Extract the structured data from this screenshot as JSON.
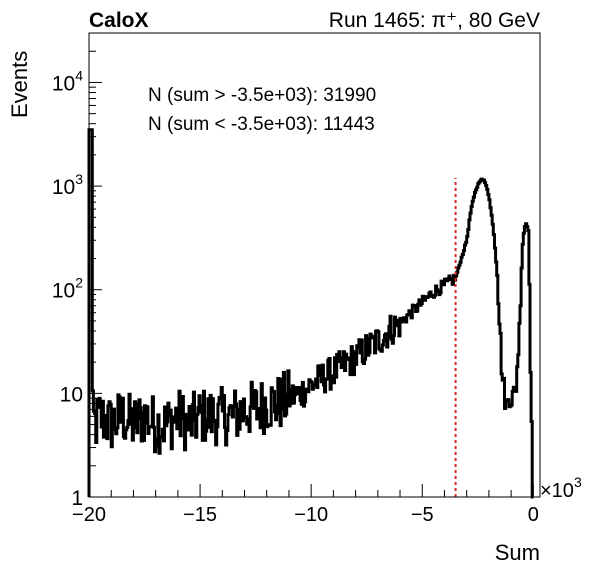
{
  "header": {
    "brand": "CaloX",
    "run_info": "Run 1465: π⁺, 80 GeV"
  },
  "chart_data": {
    "type": "line",
    "title": "",
    "xlabel": "Sum",
    "ylabel": "Events",
    "x_multiplier": "×10",
    "x_multiplier_exp": "3",
    "xlim": [
      -20,
      0.3
    ],
    "ylim": [
      1,
      30000
    ],
    "yscale": "log",
    "grid": false,
    "x_ticks": [
      -20,
      -15,
      -10,
      -5,
      0
    ],
    "x_tick_labels": [
      "−20",
      "−15",
      "−10",
      "−5",
      "0"
    ],
    "y_ticks": [
      {
        "value": 1,
        "base": "1",
        "exp": ""
      },
      {
        "value": 10,
        "base": "10",
        "exp": ""
      },
      {
        "value": 100,
        "base": "10",
        "exp": "2"
      },
      {
        "value": 1000,
        "base": "10",
        "exp": "3"
      },
      {
        "value": 10000,
        "base": "10",
        "exp": "4"
      }
    ],
    "annotations": [
      "N (sum > -3.5e+03): 31990",
      "N (sum < -3.5e+03): 11443"
    ],
    "cut_line": {
      "x": -3.5,
      "y_top": 1200,
      "color": "#d62728"
    },
    "series": [
      {
        "x": [
          -20.0,
          -19.9,
          -19.7,
          -19.5,
          -19.0,
          -18.5,
          -18.0,
          -17.5,
          -17.0,
          -16.5,
          -16.0,
          -15.5,
          -15.0,
          -14.5,
          -14.0,
          -13.5,
          -13.0,
          -12.5,
          -12.0,
          -11.5,
          -11.0,
          -10.5,
          -10.0,
          -9.5,
          -9.0,
          -8.5,
          -8.0,
          -7.5,
          -7.0,
          -6.5,
          -6.0,
          -5.5,
          -5.0,
          -4.5,
          -4.0,
          -3.5,
          -3.3,
          -3.0,
          -2.8,
          -2.6,
          -2.4,
          -2.25,
          -2.1,
          -2.0,
          -1.8,
          -1.6,
          -1.5,
          -1.4,
          -1.3,
          -1.2,
          -1.1,
          -1.0,
          -0.8,
          -0.6,
          -0.5,
          -0.4,
          -0.3,
          -0.2,
          -0.15,
          -0.05,
          0.0
        ],
        "y": [
          3500,
          6,
          5,
          6,
          5,
          6,
          5,
          6,
          5,
          5,
          6,
          5,
          6,
          6,
          6,
          6,
          7,
          7,
          8,
          8,
          9,
          10,
          12,
          14,
          16,
          19,
          22,
          27,
          32,
          40,
          48,
          60,
          75,
          95,
          110,
          130,
          180,
          300,
          600,
          900,
          1150,
          1150,
          1000,
          800,
          400,
          120,
          40,
          15,
          10,
          7,
          10,
          9,
          10,
          50,
          250,
          400,
          450,
          380,
          30,
          3,
          1
        ]
      }
    ]
  }
}
